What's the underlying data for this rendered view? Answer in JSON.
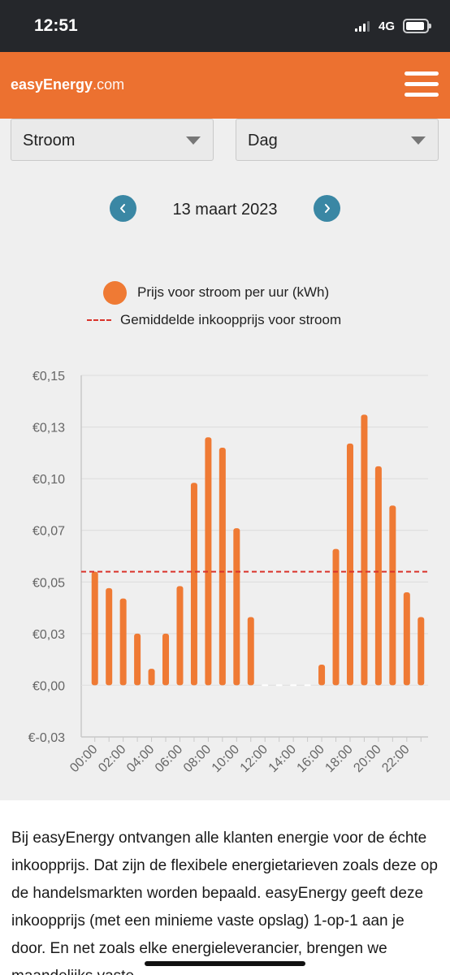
{
  "status_bar": {
    "time": "12:51",
    "network": "4G"
  },
  "header": {
    "brand": "easyEnergy",
    "tld": ".com",
    "menu_icon": "hamburger-menu-icon"
  },
  "filters": {
    "product": "Stroom",
    "period": "Dag"
  },
  "date_nav": {
    "date": "13 maart 2023",
    "prev_icon": "chevron-left-icon",
    "next_icon": "chevron-right-icon"
  },
  "legend": {
    "bars": "Prijs voor stroom per uur (kWh)",
    "average": "Gemiddelde inkoopprijs voor stroom"
  },
  "colors": {
    "accent": "#ec7130",
    "bar": "#ef7a34",
    "average_line": "#d9332b",
    "nav_button": "#3a87a4"
  },
  "chart_data": {
    "type": "bar",
    "categories": [
      "00:00",
      "01:00",
      "02:00",
      "03:00",
      "04:00",
      "05:00",
      "06:00",
      "07:00",
      "08:00",
      "09:00",
      "10:00",
      "11:00",
      "12:00",
      "13:00",
      "14:00",
      "15:00",
      "16:00",
      "17:00",
      "18:00",
      "19:00",
      "20:00",
      "21:00",
      "22:00",
      "23:00"
    ],
    "x_tick_labels": [
      "00:00",
      "02:00",
      "04:00",
      "06:00",
      "08:00",
      "10:00",
      "12:00",
      "14:00",
      "16:00",
      "18:00",
      "20:00",
      "22:00"
    ],
    "values": [
      0.055,
      0.047,
      0.042,
      0.025,
      0.008,
      0.025,
      0.048,
      0.098,
      0.12,
      0.115,
      0.076,
      0.033,
      0.0,
      0.0,
      0.0,
      0.0,
      0.01,
      0.066,
      0.117,
      0.131,
      0.106,
      0.087,
      0.045,
      0.033
    ],
    "average": 0.055,
    "y_tick_labels": [
      "€0,15",
      "€0,13",
      "€0,10",
      "€0,07",
      "€0,05",
      "€0,03",
      "€0,00",
      "€-0,03"
    ],
    "y_ticks": [
      0.15,
      0.125,
      0.1,
      0.075,
      0.05,
      0.025,
      0,
      -0.025
    ],
    "ylim": [
      -0.025,
      0.15
    ],
    "grid": true
  },
  "intro_text": "Bij easyEnergy ontvangen alle klanten energie voor de échte inkoopprijs. Dat zijn de flexibele energietarieven zoals deze op de handelsmarkten worden bepaald. easyEnergy geeft deze inkoopprijs (met een minieme vaste opslag) 1-op-1 aan je door. En net zoals elke energieleverancier, brengen we maandelijks vaste"
}
